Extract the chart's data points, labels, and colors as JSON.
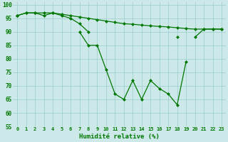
{
  "x": [
    0,
    1,
    2,
    3,
    4,
    5,
    6,
    7,
    8,
    9,
    10,
    11,
    12,
    13,
    14,
    15,
    16,
    17,
    18,
    19,
    20,
    21,
    22,
    23
  ],
  "line_top": [
    96,
    97,
    97,
    97,
    97,
    96.5,
    96,
    95.5,
    95,
    94.5,
    94,
    93.5,
    93,
    92.8,
    92.5,
    92.2,
    92,
    91.8,
    91.5,
    91.2,
    91,
    91,
    91,
    91
  ],
  "line_mid": [
    96,
    97,
    97,
    96,
    97,
    96,
    95,
    93,
    90,
    null,
    null,
    null,
    null,
    null,
    null,
    null,
    null,
    null,
    88,
    null,
    88,
    91,
    91,
    91
  ],
  "line_bot": [
    96,
    null,
    null,
    null,
    null,
    null,
    null,
    90,
    85,
    85,
    76,
    67,
    65,
    72,
    65,
    72,
    69,
    67,
    63,
    79,
    null,
    null,
    null,
    null
  ],
  "bg_color": "#cce8e8",
  "grid_color": "#99cccc",
  "line_color": "#007700",
  "xlabel": "Humidité relative (%)",
  "ylim": [
    55,
    101
  ],
  "yticks": [
    55,
    60,
    65,
    70,
    75,
    80,
    85,
    90,
    95,
    100
  ],
  "xticks": [
    0,
    1,
    2,
    3,
    4,
    5,
    6,
    7,
    8,
    9,
    10,
    11,
    12,
    13,
    14,
    15,
    16,
    17,
    18,
    19,
    20,
    21,
    22,
    23
  ]
}
